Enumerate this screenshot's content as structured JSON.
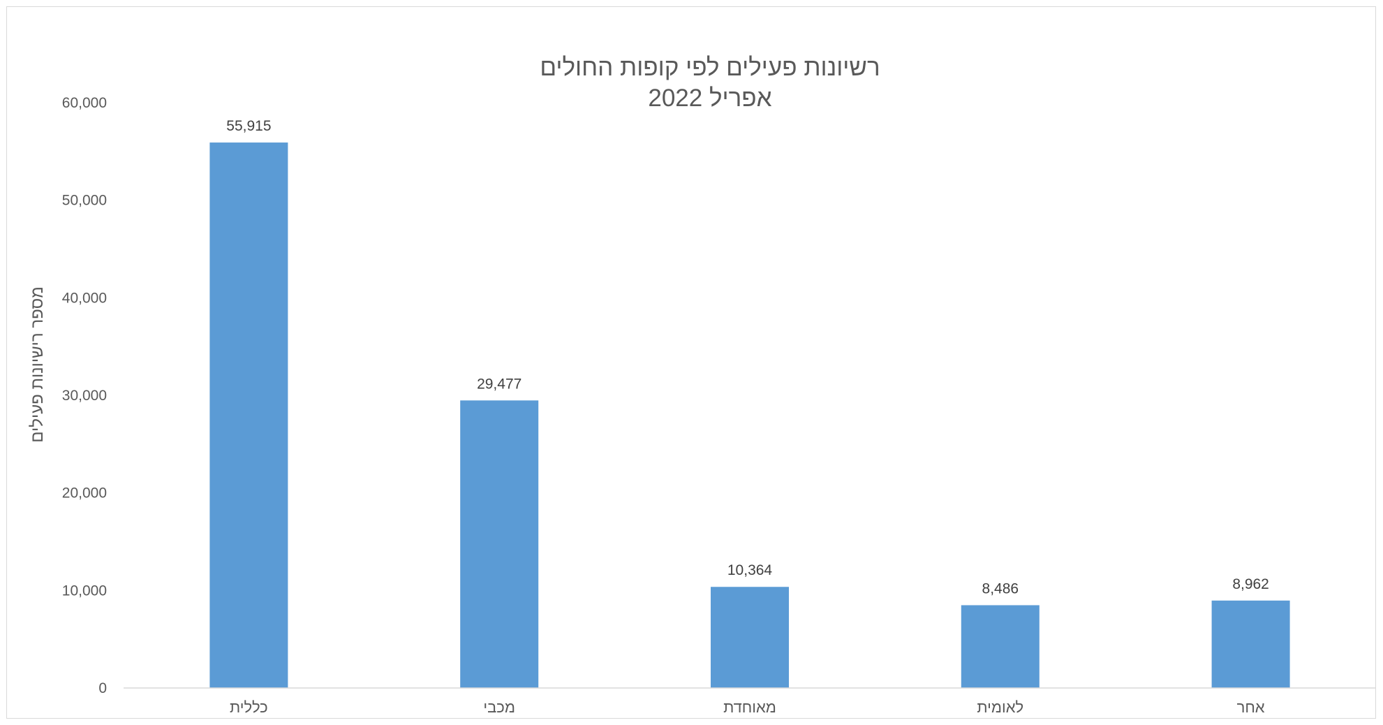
{
  "chart_data": {
    "type": "bar",
    "title": "רשיונות פעילים לפי קופות החולים",
    "subtitle": "אפריל 2022",
    "ylabel": "מספר רישיונות פעילים",
    "xlabel": "",
    "categories": [
      "כללית",
      "מכבי",
      "מאוחדת",
      "לאומית",
      "אחר"
    ],
    "values": [
      55915,
      29477,
      10364,
      8486,
      8962
    ],
    "data_labels": [
      "55,915",
      "29,477",
      "10,364",
      "8,486",
      "8,962"
    ],
    "ylim": [
      0,
      60000
    ],
    "yticks": [
      0,
      10000,
      20000,
      30000,
      40000,
      50000,
      60000
    ],
    "ytick_labels": [
      "0",
      "10,000",
      "20,000",
      "30,000",
      "40,000",
      "50,000",
      "60,000"
    ],
    "grid": false,
    "legend": "none",
    "colors": {
      "bar": "#5b9bd5",
      "axis": "#d9d9d9",
      "text": "#595959"
    }
  }
}
